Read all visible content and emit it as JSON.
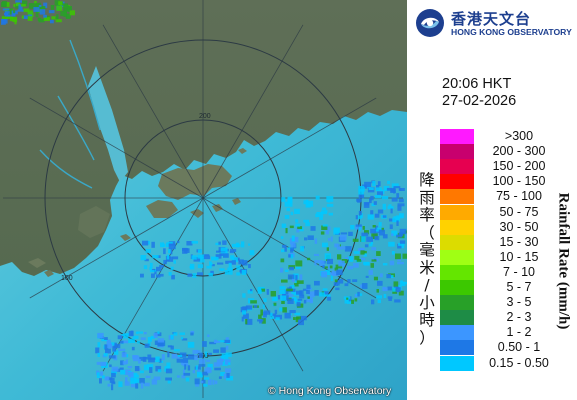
{
  "header": {
    "org_zh": "香港天文台",
    "org_en": "HONG KONG OBSERVATORY",
    "logo_icon": "hko-emblem-icon"
  },
  "timestamp": {
    "time": "20:06 HKT",
    "date": "27-02-2026"
  },
  "legend": {
    "title_zh": "降雨率（毫米/小時）",
    "title_en": "Rainfall Rate (mm/h)",
    "items": [
      {
        "range": ">300",
        "color": "#ff19ff"
      },
      {
        "range": "200 - 300",
        "color": "#c8006e"
      },
      {
        "range": "150 - 200",
        "color": "#e60050"
      },
      {
        "range": "100 - 150",
        "color": "#ff0000"
      },
      {
        "range": "75 - 100",
        "color": "#ff7800"
      },
      {
        "range": "50 - 75",
        "color": "#ffaa00"
      },
      {
        "range": "30 - 50",
        "color": "#ffd200"
      },
      {
        "range": "15 - 30",
        "color": "#dcdc00"
      },
      {
        "range": "10 - 15",
        "color": "#a0ff14"
      },
      {
        "range": "7 - 10",
        "color": "#64e600"
      },
      {
        "range": "5 - 7",
        "color": "#3cc800"
      },
      {
        "range": "3 - 5",
        "color": "#28a028"
      },
      {
        "range": "2 - 3",
        "color": "#1e8c46"
      },
      {
        "range": "1 - 2",
        "color": "#3c96ff"
      },
      {
        "range": "0.50 - 1",
        "color": "#1e78e6"
      },
      {
        "range": "0.15 - 0.50",
        "color": "#00c8ff"
      }
    ]
  },
  "map": {
    "range_labels": [
      "100",
      "200"
    ],
    "sea_color": "#45bfd9",
    "land_color": "#5e6f56"
  },
  "footer": {
    "copyright": "© Hong Kong Observatory"
  }
}
